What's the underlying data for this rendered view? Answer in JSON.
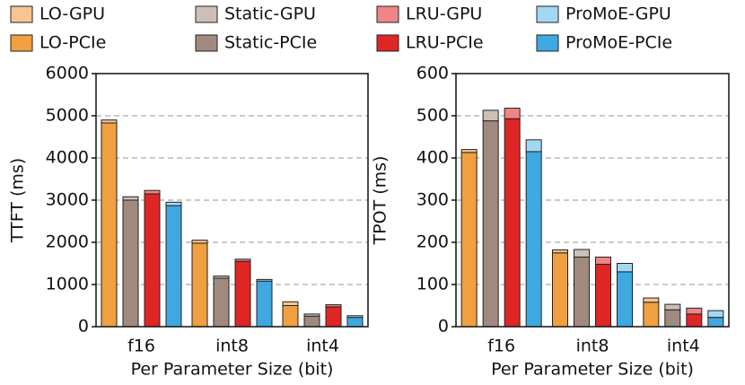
{
  "chart_data": [
    {
      "type": "bar",
      "ylabel": "TTFT (ms)",
      "xlabel": "Per Parameter Size (bit)",
      "categories": [
        "f16",
        "int8",
        "int4"
      ],
      "ylim": [
        0,
        6000
      ],
      "yticks": [
        0,
        1000,
        2000,
        3000,
        4000,
        5000,
        6000
      ],
      "grid": true,
      "series": [
        {
          "name": "LO-GPU",
          "color": "#f8c491",
          "values": [
            70,
            70,
            90
          ]
        },
        {
          "name": "Static-GPU",
          "color": "#cdbfb8",
          "values": [
            80,
            50,
            50
          ]
        },
        {
          "name": "LRU-GPU",
          "color": "#f08585",
          "values": [
            80,
            50,
            50
          ]
        },
        {
          "name": "ProMoE-GPU",
          "color": "#a3d8f2",
          "values": [
            80,
            40,
            40
          ]
        },
        {
          "name": "LO-PCIe",
          "color": "#f0a040",
          "values": [
            4830,
            1980,
            500
          ]
        },
        {
          "name": "Static-PCIe",
          "color": "#a08a80",
          "values": [
            3000,
            1150,
            250
          ]
        },
        {
          "name": "LRU-PCIe",
          "color": "#e02525",
          "values": [
            3150,
            1550,
            470
          ]
        },
        {
          "name": "ProMoE-PCIe",
          "color": "#40a8e0",
          "values": [
            2870,
            1080,
            220
          ]
        }
      ]
    },
    {
      "type": "bar",
      "ylabel": "TPOT (ms)",
      "xlabel": "Per Parameter Size (bit)",
      "categories": [
        "f16",
        "int8",
        "int4"
      ],
      "ylim": [
        0,
        600
      ],
      "yticks": [
        0,
        100,
        200,
        300,
        400,
        500,
        600
      ],
      "grid": true,
      "series": [
        {
          "name": "LO-GPU",
          "color": "#f8c491",
          "values": [
            7,
            7,
            10
          ]
        },
        {
          "name": "Static-GPU",
          "color": "#cdbfb8",
          "values": [
            25,
            18,
            13
          ]
        },
        {
          "name": "LRU-GPU",
          "color": "#f08585",
          "values": [
            25,
            17,
            14
          ]
        },
        {
          "name": "ProMoE-GPU",
          "color": "#a3d8f2",
          "values": [
            28,
            20,
            16
          ]
        },
        {
          "name": "LO-PCIe",
          "color": "#f0a040",
          "values": [
            413,
            175,
            58
          ]
        },
        {
          "name": "Static-PCIe",
          "color": "#a08a80",
          "values": [
            488,
            165,
            40
          ]
        },
        {
          "name": "LRU-PCIe",
          "color": "#e02525",
          "values": [
            493,
            148,
            30
          ]
        },
        {
          "name": "ProMoE-PCIe",
          "color": "#40a8e0",
          "values": [
            415,
            130,
            22
          ]
        }
      ]
    }
  ]
}
